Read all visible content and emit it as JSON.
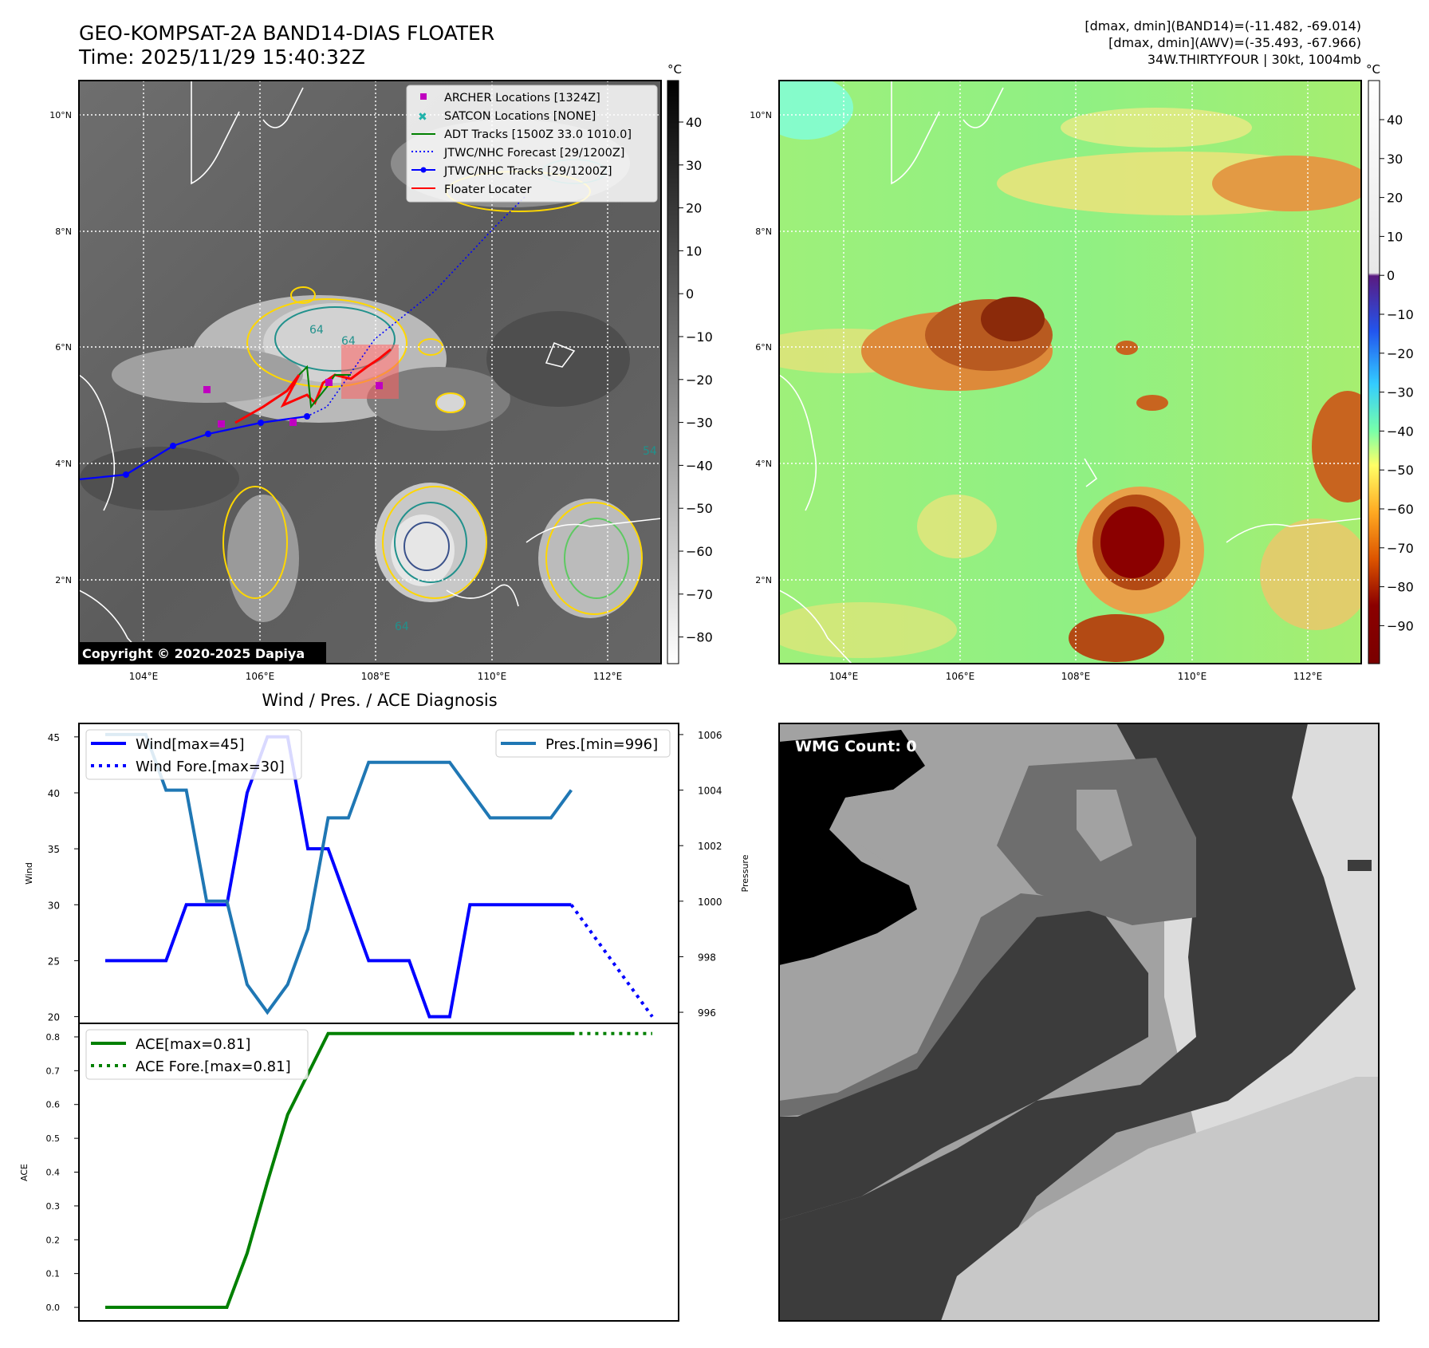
{
  "header": {
    "title": "GEO-KOMPSAT-2A BAND14-DIAS FLOATER",
    "time": "Time: 2025/11/29 15:40:32Z",
    "stats1": "[dmax, dmin](BAND14)=(-11.482, -69.014)",
    "stats2": "[dmax, dmin](AWV)=(-35.493, -67.966)",
    "storm": "34W.THIRTYFOUR | 30kt, 1004mb"
  },
  "map": {
    "lon_ticks": [
      "104°E",
      "106°E",
      "108°E",
      "110°E",
      "112°E"
    ],
    "lat_ticks": [
      "10°N",
      "8°N",
      "6°N",
      "4°N",
      "2°N"
    ],
    "copyright": "Copyright © 2020-2025 Dapiya",
    "legend": [
      {
        "label": "ARCHER Locations [1324Z]",
        "color": "#c000c0"
      },
      {
        "label": "SATCON Locations [NONE]",
        "color": "#20b2aa"
      },
      {
        "label": "ADT Tracks [1500Z 33.0 1010.0]",
        "color": "#008000"
      },
      {
        "label": "JTWC/NHC Forecast [29/1200Z]",
        "color": "#0000ff"
      },
      {
        "label": "JTWC/NHC Tracks [29/1200Z]",
        "color": "#0000ff"
      },
      {
        "label": "Floater Locater",
        "color": "#ff0000"
      }
    ],
    "contour_labels": [
      "64",
      "64",
      "54",
      "64"
    ]
  },
  "colorbar_gray": {
    "unit": "°C",
    "ticks": [
      "40",
      "30",
      "20",
      "10",
      "0",
      "−10",
      "−20",
      "−30",
      "−40",
      "−50",
      "−60",
      "−70",
      "−80"
    ]
  },
  "colorbar_color": {
    "unit": "°C",
    "ticks": [
      "40",
      "30",
      "20",
      "10",
      "0",
      "−10",
      "−20",
      "−30",
      "−40",
      "−50",
      "−60",
      "−70",
      "−80",
      "−90"
    ]
  },
  "diag": {
    "title": "Wind / Pres. / ACE Diagnosis",
    "wind_label": "Wind",
    "pres_label": "Pressure",
    "ace_label": "ACE",
    "legend_wind": "Wind[max=45]",
    "legend_wind_fore": "Wind Fore.[max=30]",
    "legend_pres": "Pres.[min=996]",
    "legend_ace": "ACE[max=0.81]",
    "legend_ace_fore": "ACE Fore.[max=0.81]"
  },
  "wmg": {
    "label": "WMG Count: 0"
  },
  "chart_data": [
    {
      "type": "line",
      "title": "Wind / Pres. / ACE Diagnosis",
      "x": [
        0,
        1,
        2,
        3,
        4,
        5,
        6,
        7,
        8,
        9,
        10,
        11,
        12,
        13,
        14,
        15,
        16,
        17,
        18,
        19,
        20,
        21,
        22,
        23
      ],
      "series": [
        {
          "name": "Wind[max=45]",
          "axis": "left",
          "color": "#0000ff",
          "values": [
            25,
            25,
            25,
            25,
            30,
            30,
            30,
            40,
            45,
            45,
            35,
            35,
            30,
            25,
            25,
            25,
            20,
            20,
            30,
            30,
            30,
            30,
            30,
            30
          ]
        },
        {
          "name": "Wind Fore.[max=30]",
          "axis": "left",
          "style": "dotted",
          "color": "#0000ff",
          "x": [
            23,
            27
          ],
          "values": [
            30,
            20
          ]
        },
        {
          "name": "Pres.[min=996]",
          "axis": "right",
          "color": "#1f77b4",
          "values": [
            1006,
            1006,
            1006,
            1004,
            1004,
            1000,
            1000,
            997,
            996,
            997,
            999,
            1003,
            1003,
            1005,
            1005,
            1005,
            1005,
            1005,
            1004,
            1003,
            1003,
            1003,
            1003,
            1004
          ]
        }
      ],
      "ylabel": "Wind",
      "ylim": [
        19.4,
        46.2
      ],
      "y_ticks": [
        20,
        25,
        30,
        35,
        40,
        45
      ],
      "y2label": "Pressure",
      "y2lim": [
        995.6,
        1006.4
      ],
      "y2_ticks": [
        996,
        998,
        1000,
        1002,
        1004,
        1006
      ],
      "xlim": [
        -1.3,
        28.3
      ]
    },
    {
      "type": "line",
      "x": [
        0,
        1,
        2,
        3,
        4,
        5,
        6,
        7,
        8,
        9,
        10,
        11,
        12,
        13,
        14,
        15,
        16,
        17,
        18,
        19,
        20,
        21,
        22,
        23
      ],
      "series": [
        {
          "name": "ACE[max=0.81]",
          "color": "#008000",
          "values": [
            0,
            0,
            0,
            0,
            0,
            0,
            0,
            0.16,
            0.37,
            0.57,
            0.69,
            0.81,
            0.81,
            0.81,
            0.81,
            0.81,
            0.81,
            0.81,
            0.81,
            0.81,
            0.81,
            0.81,
            0.81,
            0.81
          ]
        },
        {
          "name": "ACE Fore.[max=0.81]",
          "style": "dotted",
          "color": "#008000",
          "x": [
            23,
            27
          ],
          "values": [
            0.81,
            0.81
          ]
        }
      ],
      "ylabel": "ACE",
      "ylim": [
        -0.04,
        0.84
      ],
      "y_ticks": [
        0.0,
        0.1,
        0.2,
        0.3,
        0.4,
        0.5,
        0.6,
        0.7,
        0.8
      ],
      "xlim": [
        -1.3,
        28.3
      ]
    }
  ]
}
